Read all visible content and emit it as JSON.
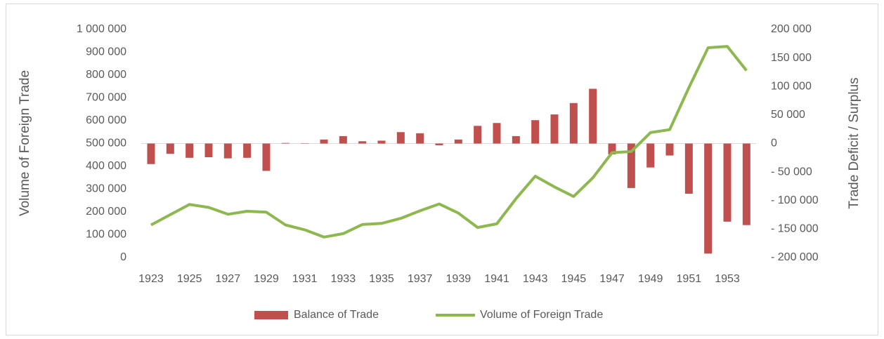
{
  "chart_data": {
    "type": "bar+line",
    "categories": [
      "1923",
      null,
      "1925",
      null,
      "1927",
      null,
      "1929",
      null,
      "1931",
      null,
      "1933",
      null,
      "1935",
      null,
      "1937",
      null,
      "1939",
      null,
      "1941",
      null,
      "1943",
      null,
      "1945",
      null,
      "1947",
      null,
      "1949",
      null,
      "1951",
      null,
      "1953",
      null
    ],
    "series": [
      {
        "name": "Balance of Trade",
        "type": "bar",
        "axis": "y2",
        "color": "#c0504d",
        "values": [
          -36000,
          -18000,
          -25000,
          -24000,
          -26000,
          -25000,
          -48000,
          1000,
          500,
          7000,
          13000,
          4000,
          5000,
          20000,
          18000,
          -3000,
          7000,
          31000,
          36000,
          13000,
          41000,
          51000,
          71000,
          96000,
          -19000,
          -78000,
          -42000,
          -21000,
          -88000,
          -193000,
          -137000,
          -143000
        ]
      },
      {
        "name": "Volume of Foreign Trade",
        "type": "line",
        "axis": "y",
        "color": "#8cb84f",
        "values": [
          143000,
          188000,
          233000,
          220000,
          190000,
          203000,
          199000,
          143000,
          122000,
          90000,
          105000,
          145000,
          150000,
          172000,
          205000,
          235000,
          195000,
          132000,
          148000,
          258000,
          357000,
          310000,
          268000,
          350000,
          460000,
          465000,
          548000,
          561000,
          745000,
          920000,
          926000,
          820000
        ]
      }
    ],
    "ylabel": "Volume of Foreign Trade",
    "y2label": "Trade Deficit / Surplus",
    "ylim": [
      0,
      1000000
    ],
    "yticks": [
      0,
      {
        "value": 100000,
        "label": "100 000"
      },
      {
        "value": 200000,
        "label": "200 000"
      },
      {
        "value": 300000,
        "label": "300 000"
      },
      {
        "value": 400000,
        "label": "400 000"
      },
      {
        "value": 500000,
        "label": "500 000"
      },
      {
        "value": 600000,
        "label": "600 000"
      },
      {
        "value": 700000,
        "label": "700 000"
      },
      {
        "value": 800000,
        "label": "800 000"
      },
      {
        "value": 900000,
        "label": "900 000"
      },
      {
        "value": 1000000,
        "label": "1 000 000"
      }
    ],
    "y2lim": [
      -200000,
      200000
    ],
    "y2ticks": [
      {
        "value": -200000,
        "label": "- 200 000"
      },
      {
        "value": -150000,
        "label": "- 150 000"
      },
      {
        "value": -100000,
        "label": "- 100 000"
      },
      {
        "value": -50000,
        "label": "- 50 000"
      },
      0,
      {
        "value": 50000,
        "label": "50 000"
      },
      {
        "value": 100000,
        "label": "100 000"
      },
      {
        "value": 150000,
        "label": "150 000"
      },
      {
        "value": 200000,
        "label": "200 000"
      }
    ],
    "legend": "bottom",
    "grid": false
  }
}
